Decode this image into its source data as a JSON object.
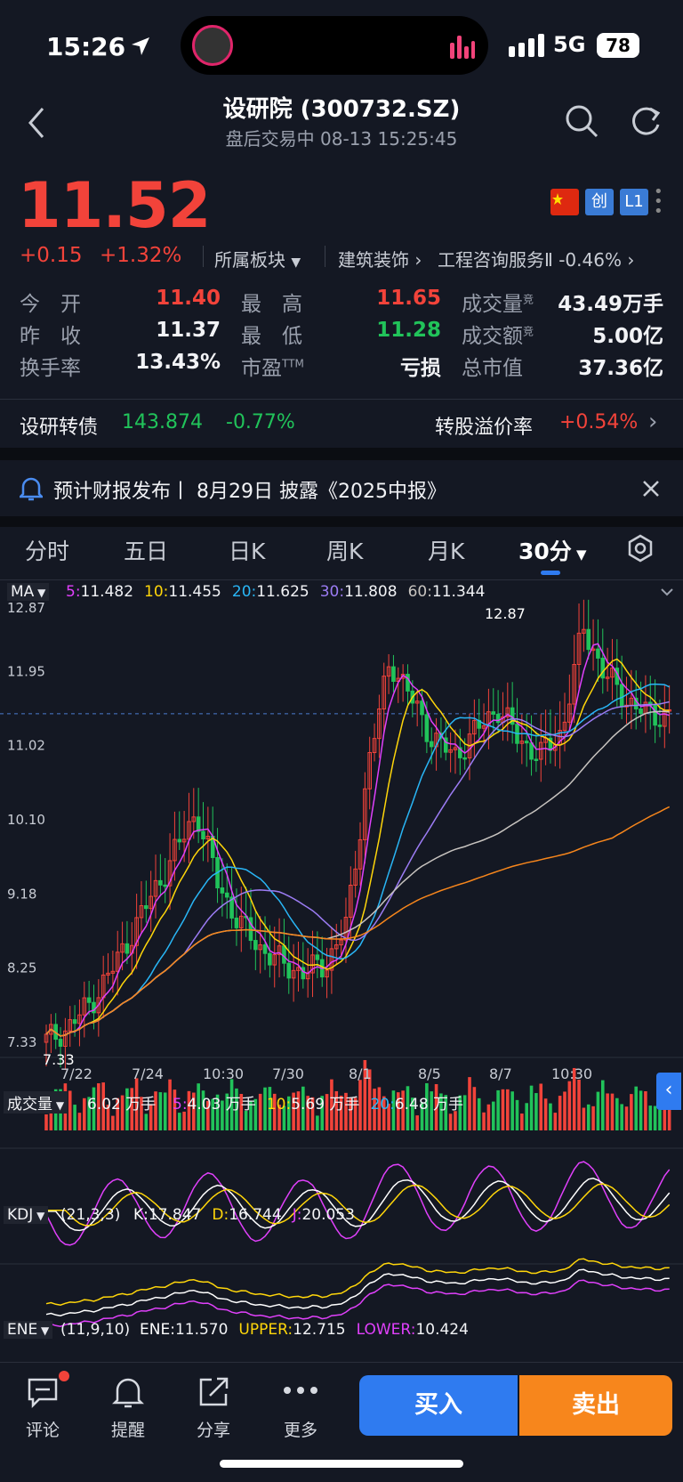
{
  "status_bar": {
    "time": "15:26",
    "network": "5G",
    "battery": "78"
  },
  "header": {
    "title": "设研院 (300732.SZ)",
    "subtitle": "盘后交易中   08-13 15:25:45"
  },
  "quote": {
    "price": "11.52",
    "change": "+0.15",
    "change_pct": "+1.32%",
    "badges": {
      "chuang": "创",
      "level": "L1"
    },
    "sector_label": "所属板块",
    "sector1": "建筑装饰",
    "sector2": "工程咨询服务Ⅱ -0.46%",
    "stats": [
      {
        "label": "今　开",
        "value": "11.40",
        "tone": "red"
      },
      {
        "label": "最　高",
        "value": "11.65",
        "tone": "red"
      },
      {
        "label": "成交量",
        "sup": "竞",
        "value": "43.49万手",
        "tone": "white"
      },
      {
        "label": "昨　收",
        "value": "11.37",
        "tone": "white"
      },
      {
        "label": "最　低",
        "value": "11.28",
        "tone": "green"
      },
      {
        "label": "成交额",
        "sup": "竞",
        "value": "5.00亿",
        "tone": "white"
      },
      {
        "label": "换手率",
        "value": "13.43%",
        "tone": "white"
      },
      {
        "label": "市盈",
        "sup": "TTM",
        "value": "亏损",
        "tone": "white"
      },
      {
        "label": "总市值",
        "value": "37.36亿",
        "tone": "white"
      }
    ]
  },
  "bond": {
    "name": "设研转债",
    "price": "143.874",
    "change": "-0.77%",
    "premium_label": "转股溢价率",
    "premium": "+0.54%"
  },
  "notice": {
    "text": "预计财报发布丨 8月29日 披露《2025中报》"
  },
  "tabs": [
    {
      "label": "分时"
    },
    {
      "label": "五日"
    },
    {
      "label": "日K"
    },
    {
      "label": "周K"
    },
    {
      "label": "月K"
    },
    {
      "label": "30分"
    }
  ],
  "ma_bar": {
    "label": "MA",
    "items": [
      {
        "key": "5:",
        "value": "11.482",
        "color": "#e040fb"
      },
      {
        "key": "10:",
        "value": "11.455",
        "color": "#ffd60a"
      },
      {
        "key": "20:",
        "value": "11.625",
        "color": "#29b6f6"
      },
      {
        "key": "30:",
        "value": "11.808",
        "color": "#9c7cf4"
      },
      {
        "key": "60:",
        "value": "11.344",
        "color": "#c8c4c0"
      }
    ]
  },
  "price_axis": [
    "12.87",
    "11.95",
    "11.02",
    "10.10",
    "9.18",
    "8.25",
    "7.33"
  ],
  "date_axis": [
    "7/22",
    "7/24",
    "10:30",
    "7/30",
    "8/1",
    "8/5",
    "8/7",
    "10:30"
  ],
  "chart_annotations": {
    "high": "12.87",
    "low": "7.33"
  },
  "chart_data": {
    "type": "candlestick",
    "close_levels": [
      7.45,
      7.6,
      7.9,
      8.3,
      8.8,
      9.3,
      9.8,
      10.3,
      9.4,
      8.9,
      8.6,
      8.4,
      8.3,
      8.4,
      8.9,
      10.9,
      12.2,
      11.7,
      11.2,
      11.0,
      11.3,
      11.6,
      11.2,
      11.0,
      11.3,
      12.6,
      12.0,
      11.7,
      11.5,
      11.52
    ],
    "ylim": [
      7.33,
      12.87
    ],
    "current_price": 11.52
  },
  "volume_bar": {
    "label": "成交量",
    "value": "6.02 万手",
    "items": [
      {
        "key": "5:",
        "value": "4.03 万手",
        "color": "#e040fb"
      },
      {
        "key": "10:",
        "value": "5.69 万手",
        "color": "#ffd60a"
      },
      {
        "key": "20:",
        "value": "6.48 万手",
        "color": "#29b6f6"
      }
    ]
  },
  "kdj_bar": {
    "label": "KDJ",
    "params": "(21,3,3)",
    "items": [
      {
        "key": "K:",
        "value": "17.847",
        "color": "#ffffff"
      },
      {
        "key": "D:",
        "value": "16.744",
        "color": "#ffd60a"
      },
      {
        "key": "J:",
        "value": "20.053",
        "color": "#e040fb"
      }
    ]
  },
  "ene_bar": {
    "label": "ENE",
    "params": "(11,9,10)",
    "items": [
      {
        "key": "ENE:",
        "value": "11.570",
        "color": "#ffffff"
      },
      {
        "key": "UPPER:",
        "value": "12.715",
        "color": "#ffd60a"
      },
      {
        "key": "LOWER:",
        "value": "10.424",
        "color": "#e040fb"
      }
    ]
  },
  "bottom_bar": {
    "comment": "评论",
    "alert": "提醒",
    "share": "分享",
    "more": "更多",
    "buy": "买入",
    "sell": "卖出"
  }
}
